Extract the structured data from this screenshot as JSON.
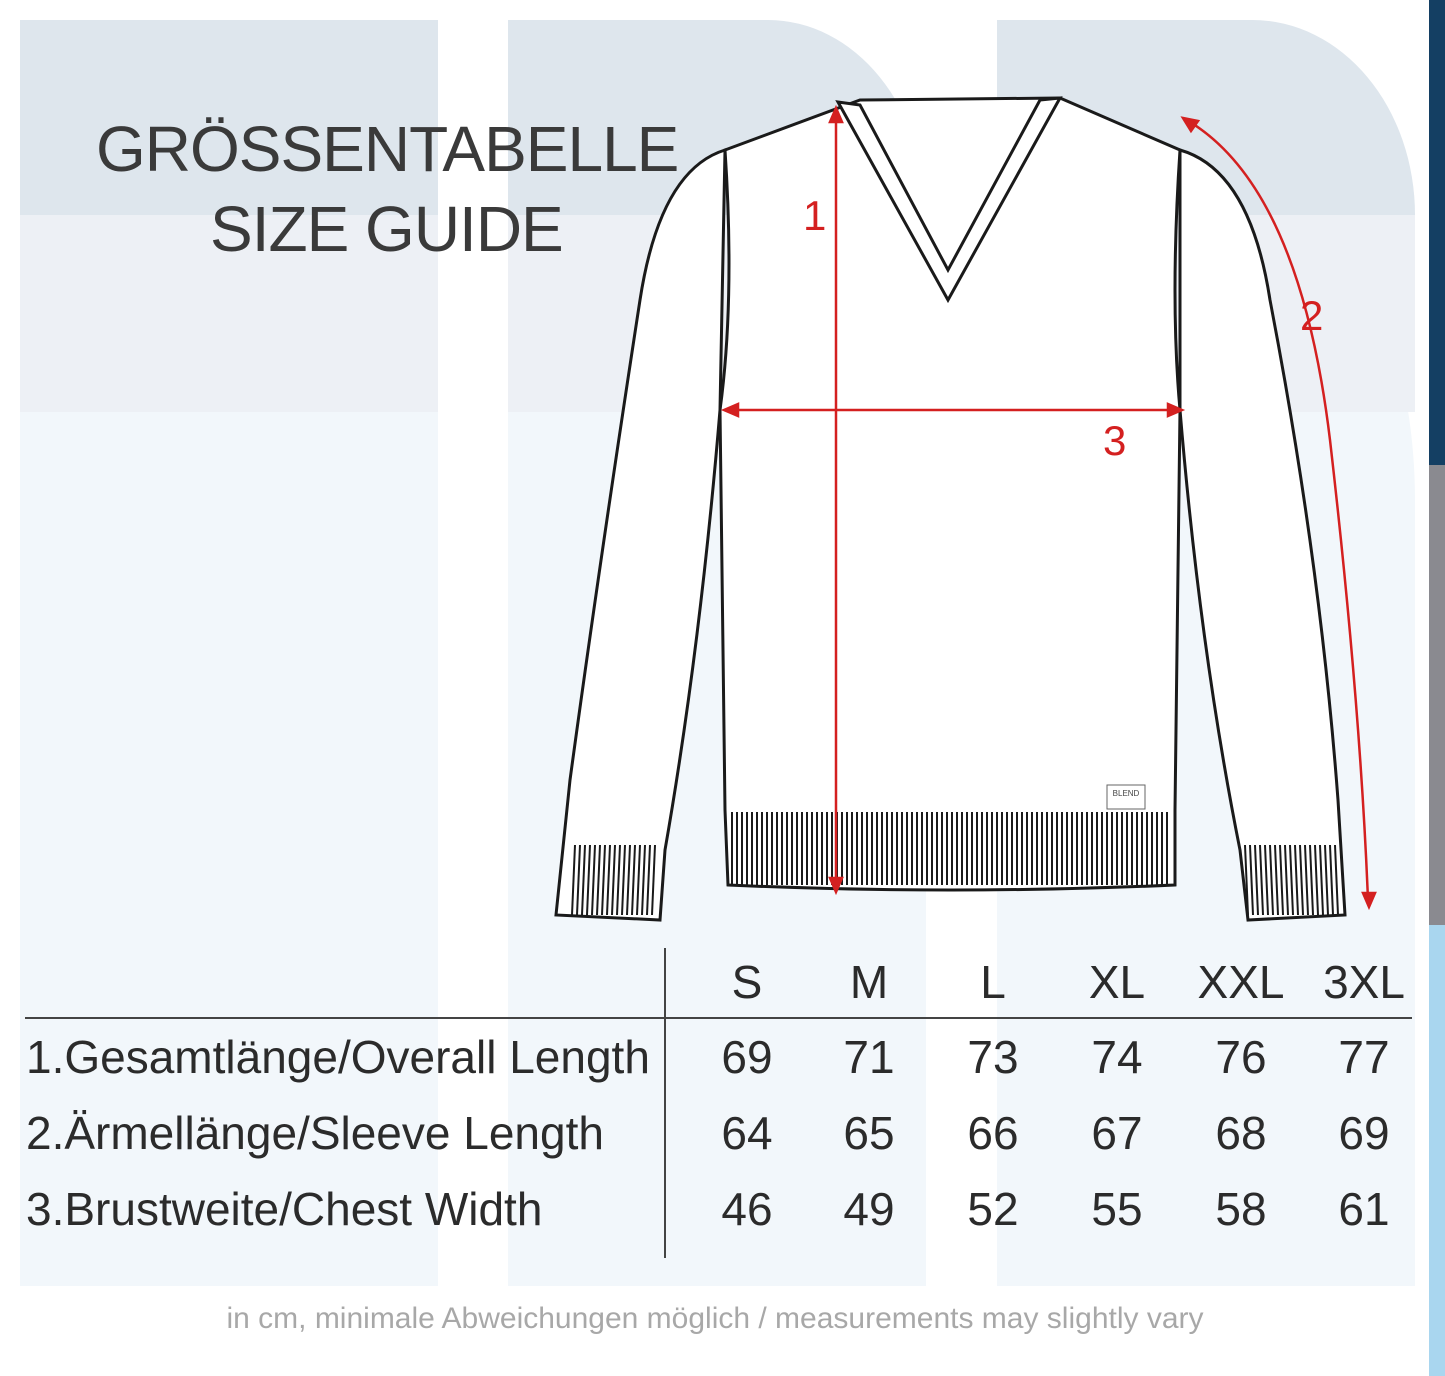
{
  "title_de": "GRÖSSENTABELLE",
  "title_en": "SIZE GUIDE",
  "brand_label": "BLEND",
  "markers": [
    "1",
    "2",
    "3"
  ],
  "sizes": [
    "S",
    "M",
    "L",
    "XL",
    "XXL",
    "3XL"
  ],
  "rows": [
    {
      "label": "1.Gesamtlänge/Overall Length",
      "values": [
        "69",
        "71",
        "73",
        "74",
        "76",
        "77"
      ]
    },
    {
      "label": "2.Ärmellänge/Sleeve Length",
      "values": [
        "64",
        "65",
        "66",
        "67",
        "68",
        "69"
      ]
    },
    {
      "label": "3.Brustweite/Chest Width",
      "values": [
        "46",
        "49",
        "52",
        "55",
        "58",
        "61"
      ]
    }
  ],
  "note": "in cm, minimale Abweichungen möglich / measurements may slightly vary",
  "colors": {
    "accent": "#d42020",
    "bar_top": "#143f63",
    "bar_mid": "#8a8a90",
    "bar_bottom": "#a9d6ef"
  }
}
